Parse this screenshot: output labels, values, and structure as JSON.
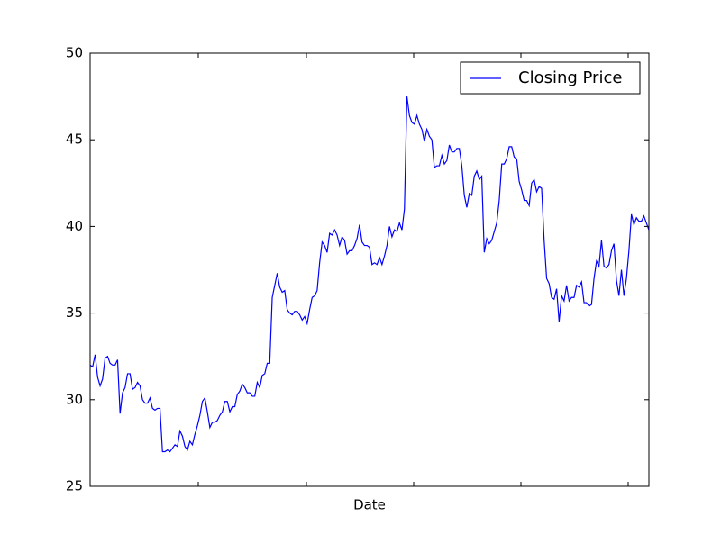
{
  "chart_data": {
    "type": "line",
    "x_label": "Date",
    "series": [
      {
        "name": "Closing Price",
        "color": "#0000ff",
        "values": [
          32.0,
          31.9,
          32.6,
          31.3,
          30.8,
          31.2,
          32.4,
          32.5,
          32.1,
          32.0,
          32.0,
          32.3,
          29.2,
          30.4,
          30.7,
          31.5,
          31.5,
          30.6,
          30.7,
          31.0,
          30.8,
          30.0,
          29.8,
          29.8,
          30.1,
          29.5,
          29.4,
          29.5,
          29.5,
          27.0,
          27.0,
          27.1,
          27.0,
          27.2,
          27.4,
          27.3,
          28.2,
          27.9,
          27.3,
          27.1,
          27.6,
          27.4,
          28.0,
          28.5,
          29.1,
          29.9,
          30.1,
          29.3,
          28.4,
          28.7,
          28.7,
          28.8,
          29.1,
          29.3,
          29.9,
          29.9,
          29.3,
          29.6,
          29.6,
          30.3,
          30.5,
          30.9,
          30.7,
          30.4,
          30.4,
          30.2,
          30.2,
          31.0,
          30.7,
          31.4,
          31.5,
          32.1,
          32.1,
          35.9,
          36.6,
          37.3,
          36.5,
          36.2,
          36.3,
          35.2,
          35.0,
          34.9,
          35.1,
          35.1,
          34.9,
          34.6,
          34.8,
          34.4,
          35.2,
          35.9,
          36.0,
          36.3,
          37.9,
          39.1,
          38.9,
          38.5,
          39.6,
          39.5,
          39.8,
          39.5,
          38.9,
          39.4,
          39.2,
          38.4,
          38.6,
          38.6,
          38.9,
          39.3,
          40.1,
          39.1,
          38.9,
          38.9,
          38.8,
          37.8,
          37.9,
          37.8,
          38.2,
          37.8,
          38.3,
          38.9,
          40.0,
          39.4,
          39.8,
          39.7,
          40.2,
          39.8,
          41.0,
          47.5,
          46.4,
          46.0,
          45.9,
          46.4,
          45.9,
          45.6,
          44.9,
          45.6,
          45.2,
          45.0,
          43.4,
          43.5,
          43.5,
          44.1,
          43.6,
          43.8,
          44.7,
          44.3,
          44.3,
          44.5,
          44.5,
          43.5,
          41.8,
          41.1,
          41.9,
          41.8,
          42.9,
          43.2,
          42.7,
          42.9,
          38.5,
          39.3,
          39.0,
          39.2,
          39.7,
          40.2,
          41.5,
          43.6,
          43.6,
          43.9,
          44.6,
          44.6,
          44.0,
          43.9,
          42.6,
          42.1,
          41.5,
          41.5,
          41.2,
          42.5,
          42.7,
          42.0,
          42.3,
          42.2,
          39.2,
          37.0,
          36.7,
          35.9,
          35.8,
          36.4,
          34.5,
          36.0,
          35.7,
          36.6,
          35.7,
          35.9,
          35.9,
          36.6,
          36.5,
          36.8,
          35.6,
          35.6,
          35.4,
          35.5,
          37.0,
          38.0,
          37.7,
          39.2,
          37.7,
          37.6,
          37.8,
          38.6,
          39.0,
          36.9,
          36.0,
          37.5,
          36.0,
          37.0,
          38.6,
          40.7,
          40.1,
          40.5,
          40.3,
          40.3,
          40.6,
          40.2,
          39.8
        ]
      }
    ],
    "ylim": [
      25,
      50
    ],
    "yticks": [
      25,
      30,
      35,
      40,
      45,
      50
    ],
    "legend": "upper right"
  }
}
